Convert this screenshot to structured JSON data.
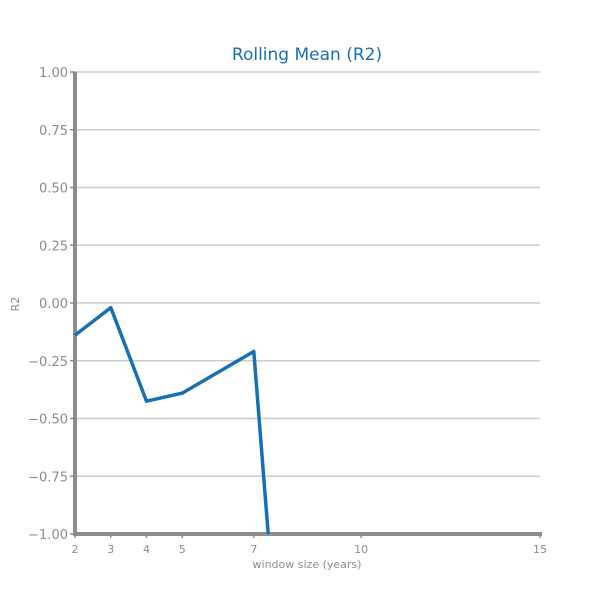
{
  "chart_data": {
    "type": "line",
    "title": "Rolling Mean (R2)",
    "xlabel": "window size (years)",
    "ylabel": "R2",
    "xlim": [
      2,
      15
    ],
    "ylim": [
      -1.0,
      1.0
    ],
    "x_ticks": [
      2,
      3,
      4,
      5,
      7,
      10,
      15
    ],
    "y_ticks": [
      -1.0,
      -0.75,
      -0.5,
      -0.25,
      0.0,
      0.25,
      0.5,
      0.75,
      1.0
    ],
    "y_tick_labels": [
      "−1.00",
      "−0.75",
      "−0.50",
      "−0.25",
      "0.00",
      "0.25",
      "0.50",
      "0.75",
      "1.00"
    ],
    "grid": true,
    "series": [
      {
        "x": [
          2,
          3,
          4,
          5,
          7,
          7.4
        ],
        "y": [
          -0.14,
          -0.02,
          -0.425,
          -0.39,
          -0.21,
          -1.0
        ]
      }
    ]
  },
  "colors": {
    "title": "#1a6fb0",
    "line": "#1a6fb0",
    "axis": "#8c8c8c",
    "grid": "#cccccc"
  }
}
